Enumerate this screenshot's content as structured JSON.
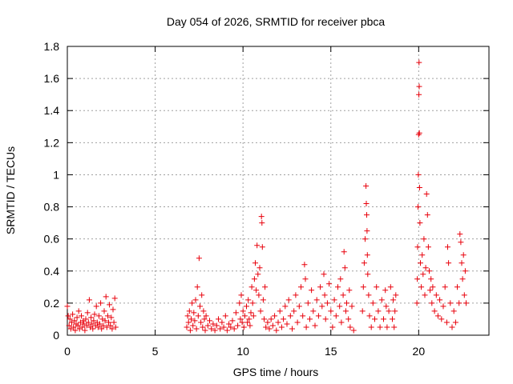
{
  "chart_data": {
    "type": "scatter",
    "title": "Day 054 of 2026, SRMTID for receiver pbca",
    "xlabel": "GPS time / hours",
    "ylabel": "SRMTID / TECUs",
    "xlim": [
      0,
      24
    ],
    "ylim": [
      0,
      1.8
    ],
    "xticks": [
      "0",
      "5",
      "10",
      "15",
      "20"
    ],
    "xtick_values": [
      0,
      5,
      10,
      15,
      20
    ],
    "yticks": [
      "0",
      "0.2",
      "0.4",
      "0.6",
      "0.8",
      "1",
      "1.2",
      "1.4",
      "1.6",
      "1.8"
    ],
    "ytick_values": [
      0,
      0.2,
      0.4,
      0.6,
      0.8,
      1.0,
      1.2,
      1.4,
      1.6,
      1.8
    ],
    "grid": true,
    "marker": "+",
    "marker_color": "#e8000b",
    "series": [
      {
        "name": "SRMTID",
        "points": [
          [
            0.0,
            0.18
          ],
          [
            0.05,
            0.12
          ],
          [
            0.1,
            0.06
          ],
          [
            0.15,
            0.1
          ],
          [
            0.2,
            0.04
          ],
          [
            0.25,
            0.08
          ],
          [
            0.3,
            0.13
          ],
          [
            0.35,
            0.05
          ],
          [
            0.4,
            0.09
          ],
          [
            0.45,
            0.03
          ],
          [
            0.5,
            0.07
          ],
          [
            0.55,
            0.11
          ],
          [
            0.6,
            0.06
          ],
          [
            0.65,
            0.15
          ],
          [
            0.7,
            0.04
          ],
          [
            0.75,
            0.08
          ],
          [
            0.8,
            0.12
          ],
          [
            0.85,
            0.05
          ],
          [
            0.9,
            0.09
          ],
          [
            0.95,
            0.07
          ],
          [
            1.0,
            0.03
          ],
          [
            1.05,
            0.1
          ],
          [
            1.1,
            0.06
          ],
          [
            1.15,
            0.14
          ],
          [
            1.2,
            0.08
          ],
          [
            1.25,
            0.22
          ],
          [
            1.3,
            0.05
          ],
          [
            1.35,
            0.11
          ],
          [
            1.4,
            0.07
          ],
          [
            1.45,
            0.04
          ],
          [
            1.5,
            0.09
          ],
          [
            1.55,
            0.13
          ],
          [
            1.6,
            0.06
          ],
          [
            1.65,
            0.18
          ],
          [
            1.7,
            0.08
          ],
          [
            1.75,
            0.05
          ],
          [
            1.8,
            0.12
          ],
          [
            1.85,
            0.07
          ],
          [
            1.9,
            0.2
          ],
          [
            1.95,
            0.04
          ],
          [
            2.0,
            0.1
          ],
          [
            2.05,
            0.06
          ],
          [
            2.1,
            0.15
          ],
          [
            2.15,
            0.09
          ],
          [
            2.2,
            0.24
          ],
          [
            2.25,
            0.05
          ],
          [
            2.3,
            0.12
          ],
          [
            2.35,
            0.08
          ],
          [
            2.4,
            0.19
          ],
          [
            2.45,
            0.06
          ],
          [
            2.5,
            0.11
          ],
          [
            2.55,
            0.04
          ],
          [
            2.6,
            0.16
          ],
          [
            2.65,
            0.08
          ],
          [
            2.7,
            0.23
          ],
          [
            2.75,
            0.05
          ],
          [
            6.8,
            0.05
          ],
          [
            6.85,
            0.12
          ],
          [
            6.9,
            0.08
          ],
          [
            6.95,
            0.15
          ],
          [
            7.0,
            0.03
          ],
          [
            7.05,
            0.1
          ],
          [
            7.1,
            0.2
          ],
          [
            7.15,
            0.06
          ],
          [
            7.2,
            0.14
          ],
          [
            7.25,
            0.09
          ],
          [
            7.3,
            0.22
          ],
          [
            7.35,
            0.04
          ],
          [
            7.4,
            0.3
          ],
          [
            7.45,
            0.12
          ],
          [
            7.5,
            0.48
          ],
          [
            7.55,
            0.18
          ],
          [
            7.6,
            0.08
          ],
          [
            7.65,
            0.25
          ],
          [
            7.7,
            0.05
          ],
          [
            7.75,
            0.15
          ],
          [
            7.8,
            0.1
          ],
          [
            7.85,
            0.03
          ],
          [
            7.9,
            0.12
          ],
          [
            8.0,
            0.06
          ],
          [
            8.1,
            0.09
          ],
          [
            8.2,
            0.04
          ],
          [
            8.3,
            0.07
          ],
          [
            8.4,
            0.03
          ],
          [
            8.5,
            0.06
          ],
          [
            8.6,
            0.1
          ],
          [
            8.7,
            0.04
          ],
          [
            8.8,
            0.08
          ],
          [
            8.9,
            0.05
          ],
          [
            9.0,
            0.12
          ],
          [
            9.1,
            0.03
          ],
          [
            9.2,
            0.07
          ],
          [
            9.3,
            0.05
          ],
          [
            9.4,
            0.09
          ],
          [
            9.5,
            0.04
          ],
          [
            9.6,
            0.14
          ],
          [
            9.7,
            0.06
          ],
          [
            9.8,
            0.2
          ],
          [
            9.85,
            0.1
          ],
          [
            9.9,
            0.25
          ],
          [
            9.95,
            0.08
          ],
          [
            10.0,
            0.15
          ],
          [
            10.05,
            0.05
          ],
          [
            10.1,
            0.12
          ],
          [
            10.2,
            0.18
          ],
          [
            10.25,
            0.08
          ],
          [
            10.3,
            0.22
          ],
          [
            10.35,
            0.1
          ],
          [
            10.4,
            0.06
          ],
          [
            10.45,
            0.14
          ],
          [
            10.5,
            0.3
          ],
          [
            10.55,
            0.2
          ],
          [
            10.6,
            0.12
          ],
          [
            10.65,
            0.35
          ],
          [
            10.7,
            0.45
          ],
          [
            10.75,
            0.28
          ],
          [
            10.8,
            0.56
          ],
          [
            10.85,
            0.38
          ],
          [
            10.9,
            0.25
          ],
          [
            10.95,
            0.42
          ],
          [
            11.0,
            0.15
          ],
          [
            11.05,
            0.74
          ],
          [
            11.08,
            0.7
          ],
          [
            11.1,
            0.55
          ],
          [
            11.15,
            0.22
          ],
          [
            11.2,
            0.1
          ],
          [
            11.25,
            0.3
          ],
          [
            11.3,
            0.05
          ],
          [
            11.4,
            0.08
          ],
          [
            11.5,
            0.04
          ],
          [
            11.6,
            0.1
          ],
          [
            11.7,
            0.06
          ],
          [
            11.8,
            0.12
          ],
          [
            11.9,
            0.03
          ],
          [
            12.0,
            0.08
          ],
          [
            12.1,
            0.15
          ],
          [
            12.2,
            0.05
          ],
          [
            12.3,
            0.1
          ],
          [
            12.4,
            0.18
          ],
          [
            12.5,
            0.07
          ],
          [
            12.6,
            0.22
          ],
          [
            12.7,
            0.12
          ],
          [
            12.8,
            0.04
          ],
          [
            12.9,
            0.15
          ],
          [
            13.0,
            0.25
          ],
          [
            13.1,
            0.08
          ],
          [
            13.2,
            0.18
          ],
          [
            13.3,
            0.3
          ],
          [
            13.4,
            0.12
          ],
          [
            13.5,
            0.44
          ],
          [
            13.55,
            0.35
          ],
          [
            13.6,
            0.05
          ],
          [
            13.7,
            0.2
          ],
          [
            13.8,
            0.1
          ],
          [
            13.9,
            0.28
          ],
          [
            14.0,
            0.15
          ],
          [
            14.1,
            0.06
          ],
          [
            14.2,
            0.22
          ],
          [
            14.3,
            0.12
          ],
          [
            14.4,
            0.3
          ],
          [
            14.5,
            0.18
          ],
          [
            14.6,
            0.38
          ],
          [
            14.65,
            0.25
          ],
          [
            14.7,
            0.1
          ],
          [
            14.8,
            0.2
          ],
          [
            14.9,
            0.32
          ],
          [
            15.0,
            0.15
          ],
          [
            15.1,
            0.05
          ],
          [
            15.2,
            0.22
          ],
          [
            15.3,
            0.12
          ],
          [
            15.4,
            0.3
          ],
          [
            15.5,
            0.18
          ],
          [
            15.55,
            0.35
          ],
          [
            15.6,
            0.08
          ],
          [
            15.7,
            0.25
          ],
          [
            15.75,
            0.52
          ],
          [
            15.8,
            0.42
          ],
          [
            15.85,
            0.15
          ],
          [
            15.9,
            0.2
          ],
          [
            16.0,
            0.1
          ],
          [
            16.05,
            0.28
          ],
          [
            16.1,
            0.05
          ],
          [
            16.2,
            0.18
          ],
          [
            16.3,
            0.03
          ],
          [
            16.8,
            0.15
          ],
          [
            16.85,
            0.3
          ],
          [
            16.9,
            0.45
          ],
          [
            16.95,
            0.6
          ],
          [
            17.0,
            0.93
          ],
          [
            17.02,
            0.82
          ],
          [
            17.04,
            0.75
          ],
          [
            17.06,
            0.65
          ],
          [
            17.08,
            0.5
          ],
          [
            17.1,
            0.38
          ],
          [
            17.15,
            0.25
          ],
          [
            17.2,
            0.12
          ],
          [
            17.3,
            0.05
          ],
          [
            17.4,
            0.2
          ],
          [
            17.5,
            0.1
          ],
          [
            17.6,
            0.3
          ],
          [
            17.7,
            0.15
          ],
          [
            17.8,
            0.05
          ],
          [
            17.9,
            0.22
          ],
          [
            18.0,
            0.1
          ],
          [
            18.1,
            0.28
          ],
          [
            18.15,
            0.18
          ],
          [
            18.2,
            0.05
          ],
          [
            18.3,
            0.15
          ],
          [
            18.4,
            0.3
          ],
          [
            18.5,
            0.1
          ],
          [
            18.55,
            0.22
          ],
          [
            18.6,
            0.05
          ],
          [
            18.65,
            0.15
          ],
          [
            18.7,
            0.25
          ],
          [
            19.9,
            0.2
          ],
          [
            19.92,
            0.35
          ],
          [
            19.94,
            0.55
          ],
          [
            19.96,
            0.8
          ],
          [
            19.98,
            1.0
          ],
          [
            20.0,
            1.25
          ],
          [
            20.01,
            1.5
          ],
          [
            20.02,
            1.7
          ],
          [
            20.03,
            1.55
          ],
          [
            20.04,
            1.26
          ],
          [
            20.05,
            0.92
          ],
          [
            20.07,
            0.7
          ],
          [
            20.1,
            0.45
          ],
          [
            20.15,
            0.3
          ],
          [
            20.2,
            0.5
          ],
          [
            20.25,
            0.38
          ],
          [
            20.3,
            0.6
          ],
          [
            20.35,
            0.25
          ],
          [
            20.4,
            0.42
          ],
          [
            20.45,
            0.88
          ],
          [
            20.5,
            0.75
          ],
          [
            20.55,
            0.55
          ],
          [
            20.6,
            0.4
          ],
          [
            20.65,
            0.28
          ],
          [
            20.7,
            0.35
          ],
          [
            20.75,
            0.2
          ],
          [
            20.8,
            0.3
          ],
          [
            20.9,
            0.15
          ],
          [
            21.0,
            0.25
          ],
          [
            21.1,
            0.12
          ],
          [
            21.2,
            0.22
          ],
          [
            21.3,
            0.1
          ],
          [
            21.4,
            0.18
          ],
          [
            21.5,
            0.3
          ],
          [
            21.6,
            0.08
          ],
          [
            21.65,
            0.55
          ],
          [
            21.7,
            0.45
          ],
          [
            21.8,
            0.2
          ],
          [
            21.9,
            0.05
          ],
          [
            22.0,
            0.15
          ],
          [
            22.1,
            0.08
          ],
          [
            22.2,
            0.3
          ],
          [
            22.3,
            0.2
          ],
          [
            22.35,
            0.63
          ],
          [
            22.4,
            0.58
          ],
          [
            22.45,
            0.45
          ],
          [
            22.5,
            0.35
          ],
          [
            22.55,
            0.5
          ],
          [
            22.6,
            0.25
          ],
          [
            22.65,
            0.4
          ],
          [
            22.7,
            0.2
          ]
        ]
      }
    ]
  }
}
